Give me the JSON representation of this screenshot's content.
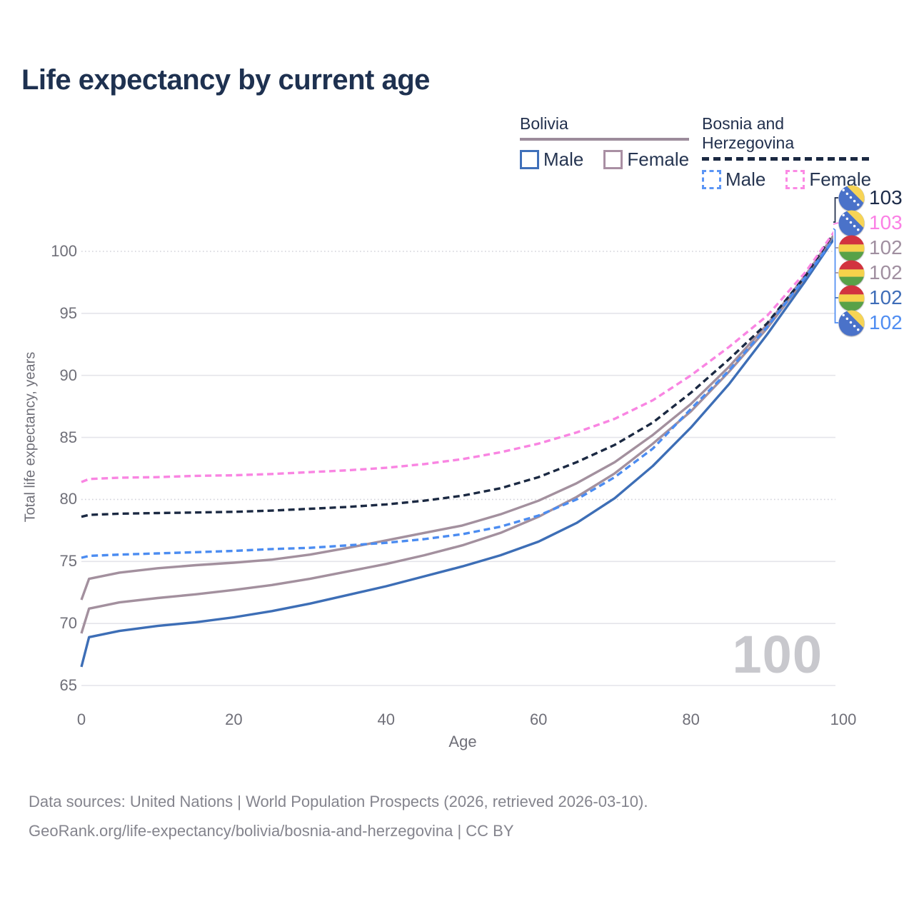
{
  "title": "Life expectancy by current age",
  "watermark": "100",
  "legend": {
    "groups": [
      {
        "country": "Bolivia",
        "underline_color": "#9c8b9b",
        "underline_style": "solid",
        "items": [
          {
            "label": "Male",
            "color": "#3f70ba",
            "style": "solid"
          },
          {
            "label": "Female",
            "color": "#a98fa3",
            "style": "solid"
          }
        ]
      },
      {
        "country": "Bosnia and Herzegovina",
        "underline_color": "#1b2942",
        "underline_style": "dashed",
        "items": [
          {
            "label": "Male",
            "color": "#5a95f5",
            "style": "dashed"
          },
          {
            "label": "Female",
            "color": "#fb8ae4",
            "style": "dashed"
          }
        ]
      }
    ]
  },
  "axes": {
    "x": {
      "title": "Age",
      "ticks": [
        0,
        20,
        40,
        60,
        80,
        100
      ],
      "range": [
        0,
        100
      ]
    },
    "y": {
      "title": "Total life expectancy, years",
      "ticks": [
        65,
        70,
        75,
        80,
        85,
        90,
        95,
        100
      ],
      "dotted_gridlines": [
        80,
        100
      ],
      "range": [
        65,
        100
      ]
    }
  },
  "chart_data": {
    "type": "line",
    "title": "Life expectancy by current age",
    "xlabel": "Age",
    "ylabel": "Total life expectancy, years",
    "xlim": [
      0,
      100
    ],
    "ylim": [
      65,
      103
    ],
    "grid": "horizontal",
    "ages": [
      0,
      1,
      5,
      10,
      15,
      20,
      25,
      30,
      35,
      40,
      45,
      50,
      55,
      60,
      65,
      70,
      75,
      80,
      85,
      90,
      95,
      100
    ],
    "series": [
      {
        "id": "bolivia-combined",
        "name": "Bolivia",
        "sex": "Combined",
        "color": "#a3909e",
        "dashed": false,
        "values": [
          69.2,
          71.2,
          71.7,
          72.05,
          72.35,
          72.7,
          73.1,
          73.6,
          74.2,
          74.8,
          75.5,
          76.3,
          77.3,
          78.6,
          80.2,
          82.1,
          84.5,
          87.1,
          90.3,
          93.8,
          97.85,
          102.3
        ]
      },
      {
        "id": "bolivia-female",
        "name": "Bolivia Female",
        "sex": "Female",
        "color": "#a3909e",
        "dashed": false,
        "values": [
          71.9,
          73.6,
          74.1,
          74.45,
          74.7,
          74.9,
          75.15,
          75.55,
          76.1,
          76.7,
          77.3,
          77.9,
          78.8,
          79.9,
          81.3,
          83.0,
          85.2,
          87.7,
          90.7,
          94.1,
          98.05,
          102.4
        ]
      },
      {
        "id": "bolivia-male",
        "name": "Bolivia Male",
        "sex": "Male",
        "color": "#3d6eb6",
        "dashed": false,
        "values": [
          66.5,
          68.9,
          69.4,
          69.8,
          70.1,
          70.5,
          71.0,
          71.6,
          72.3,
          73.0,
          73.8,
          74.6,
          75.5,
          76.6,
          78.1,
          80.1,
          82.7,
          85.8,
          89.3,
          93.3,
          97.6,
          102.1
        ]
      },
      {
        "id": "bosnia-combined",
        "name": "Bosnia and Herzegovina",
        "sex": "Combined",
        "color": "#1b2942",
        "dashed": true,
        "values": [
          78.6,
          78.75,
          78.85,
          78.9,
          78.95,
          79.0,
          79.1,
          79.25,
          79.4,
          79.6,
          79.9,
          80.3,
          80.9,
          81.8,
          83.0,
          84.4,
          86.2,
          88.6,
          91.3,
          94.2,
          98.0,
          102.65
        ]
      },
      {
        "id": "bosnia-female",
        "name": "Bosnia and Herzegovina Female",
        "sex": "Female",
        "color": "#f985e2",
        "dashed": true,
        "values": [
          81.4,
          81.65,
          81.75,
          81.8,
          81.9,
          81.95,
          82.05,
          82.2,
          82.35,
          82.55,
          82.85,
          83.25,
          83.8,
          84.5,
          85.4,
          86.5,
          88.0,
          90.0,
          92.3,
          94.8,
          98.3,
          102.6
        ]
      },
      {
        "id": "bosnia-male",
        "name": "Bosnia and Herzegovina Male",
        "sex": "Male",
        "color": "#4b8cf1",
        "dashed": true,
        "values": [
          75.3,
          75.45,
          75.55,
          75.65,
          75.75,
          75.85,
          76.0,
          76.1,
          76.3,
          76.5,
          76.8,
          77.2,
          77.8,
          78.7,
          80.0,
          81.8,
          84.1,
          87.3,
          90.4,
          93.9,
          97.9,
          102.0
        ]
      }
    ],
    "end_labels": [
      {
        "value": "103",
        "flag": "bosnia",
        "color": "#1d2b49"
      },
      {
        "value": "103",
        "flag": "bosnia",
        "color": "#fb80e5"
      },
      {
        "value": "102",
        "flag": "bolivia",
        "color": "#a08fa0"
      },
      {
        "value": "102",
        "flag": "bolivia",
        "color": "#a08fa0"
      },
      {
        "value": "102",
        "flag": "bolivia",
        "color": "#3f6db8"
      },
      {
        "value": "102",
        "flag": "bosnia",
        "color": "#4f8df2"
      }
    ]
  },
  "colors": {
    "title": "#1e3150",
    "gridline": "#e4e4ea",
    "gridline_dotted": "#d2d2da",
    "tick_text": "#6f6f78",
    "footer_text": "#84848d",
    "watermark": "#c8c8cd",
    "flag_bosnia_blue": "#4a72c9",
    "flag_bosnia_yellow": "#f7d455",
    "flag_bolivia_red": "#d2333f",
    "flag_bolivia_yellow": "#f5d24b",
    "flag_bolivia_green": "#58a148"
  },
  "footer": {
    "line1": "Data sources: United Nations | World Population Prospects (2026, retrieved 2026-03-10).",
    "line2": "GeoRank.org/life-expectancy/bolivia/bosnia-and-herzegovina | CC BY"
  }
}
